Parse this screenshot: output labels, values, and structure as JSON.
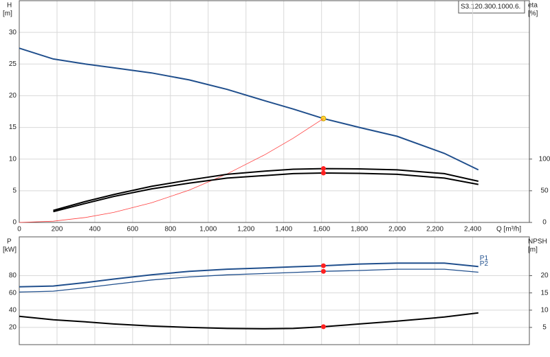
{
  "curve_id": "S3.120.300.1000.6.",
  "chart_data": [
    {
      "type": "line",
      "ylabel": "H",
      "yunit": "[m]",
      "y2label": "eta",
      "y2unit": "[%]",
      "xlabel": "Q [m³/h]",
      "xlim": [
        0,
        2700
      ],
      "ylim": [
        0,
        35
      ],
      "y2lim": [
        0,
        350
      ],
      "xticks": [
        0,
        200,
        400,
        600,
        800,
        {
          "value": 1000,
          "label": "1,000"
        },
        {
          "value": 1200,
          "label": "1,200"
        },
        {
          "value": 1400,
          "label": "1,400"
        },
        {
          "value": 1600,
          "label": "1,600"
        },
        {
          "value": 1800,
          "label": "1,800"
        },
        {
          "value": 2000,
          "label": "2,000"
        },
        {
          "value": 2200,
          "label": "2,200"
        },
        {
          "value": 2400,
          "label": "2,400"
        }
      ],
      "yticks": [
        0,
        5,
        10,
        15,
        20,
        25,
        30
      ],
      "y2ticks": [
        0,
        50,
        100
      ],
      "grid": true,
      "duty_x": 1610,
      "x": [
        0,
        180,
        350,
        500,
        700,
        900,
        1100,
        1300,
        1450,
        1610,
        1800,
        2000,
        2250,
        2430
      ],
      "series": [
        {
          "color": "#1f4e8c",
          "width": 2,
          "duty_color": "#ffd633",
          "values": [
            27.5,
            25.8,
            25,
            24.4,
            23.6,
            22.5,
            21.0,
            19.2,
            17.9,
            16.4,
            15,
            13.6,
            10.9,
            8.3
          ]
        },
        {
          "color": "#ff3b3b",
          "width": 0.8,
          "values": [
            0,
            0.2,
            0.78,
            1.58,
            3.1,
            5.1,
            7.66,
            10.7,
            13.3,
            16.4,
            null,
            null,
            null,
            null
          ]
        },
        {
          "color": "#000000",
          "width": 2,
          "axis": "y2",
          "duty_color": "#ff2020",
          "values": [
            null,
            19,
            33,
            44,
            57,
            67,
            76,
            81,
            84,
            85,
            84.5,
            83,
            77,
            65
          ]
        },
        {
          "color": "#000000",
          "width": 2,
          "axis": "y2",
          "duty_color": "#ff2020",
          "values": [
            null,
            17,
            30,
            41,
            53,
            62,
            70,
            74,
            77,
            78,
            77.5,
            76,
            70,
            60
          ]
        }
      ]
    },
    {
      "type": "line",
      "ylabel": "P",
      "yunit": "[kW]",
      "y2label": "NPSH",
      "y2unit": "[m]",
      "xlim": [
        0,
        2700
      ],
      "ylim": [
        0,
        125
      ],
      "y2lim": [
        0,
        31.25
      ],
      "yticks": [
        20,
        40,
        60,
        80
      ],
      "y2ticks": [
        5,
        10,
        15,
        20
      ],
      "grid": true,
      "duty_x": 1610,
      "x": [
        0,
        180,
        350,
        500,
        700,
        900,
        1100,
        1300,
        1450,
        1610,
        1800,
        2000,
        2250,
        2430
      ],
      "series": [
        {
          "name": "P1",
          "color": "#1f4e8c",
          "width": 2,
          "duty_color": "#ff2020",
          "values": [
            67,
            68,
            72,
            76,
            81,
            85,
            87.5,
            89,
            90.3,
            91.5,
            93.5,
            94.5,
            94.5,
            90.5
          ]
        },
        {
          "name": "P2",
          "color": "#1f4e8c",
          "width": 1.3,
          "duty_color": "#ff2020",
          "values": [
            61,
            62,
            66,
            70,
            75,
            78.5,
            81,
            82.5,
            83.7,
            85,
            86,
            87.5,
            87.5,
            84
          ]
        },
        {
          "color": "#000000",
          "width": 2,
          "axis": "y2",
          "duty_color": "#ff2020",
          "values": [
            8.2,
            7.2,
            6.6,
            6.0,
            5.4,
            5.0,
            4.7,
            4.6,
            4.7,
            5.2,
            6.0,
            6.8,
            8.0,
            9.2
          ]
        }
      ]
    }
  ]
}
